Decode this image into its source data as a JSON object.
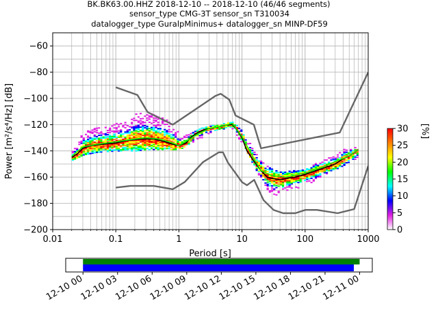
{
  "figure": {
    "title_lines": [
      "BK.BK63.00.HHZ   2018-12-10 -- 2018-12-10  (46/46 segments)",
      "sensor_type CMG-3T sensor_sn T310034",
      "datalogger_type GuralpMinimus+ datalogger_sn MINP-DF59"
    ]
  },
  "chart_data": [
    {
      "type": "heatmap",
      "title": "BK.BK63.00.HHZ   2018-12-10 -- 2018-12-10  (46/46 segments)",
      "xlabel": "Period [s]",
      "ylabel": "Power [m²/s⁴/Hz] [dB]",
      "x_scale": "log",
      "xlim": [
        0.01,
        1000
      ],
      "ylim": [
        -200,
        -50
      ],
      "x_ticks": [
        "0.01",
        "0.1",
        "1",
        "10",
        "100",
        "1000"
      ],
      "y_ticks": [
        "−200",
        "−180",
        "−160",
        "−140",
        "−120",
        "−100",
        "−80",
        "−60"
      ],
      "grid": true,
      "colorbar": {
        "label": "[%]",
        "min": 0,
        "max": 30,
        "ticks": [
          "0",
          "5",
          "10",
          "15",
          "20",
          "25",
          "30"
        ],
        "colors": [
          "#ffffff",
          "#e020e0",
          "#0000ff",
          "#00ffff",
          "#00ff00",
          "#ffff00",
          "#ff8000",
          "#ff0000"
        ]
      },
      "series": [
        {
          "role": "mean",
          "color": "#000000",
          "x": [
            0.02,
            0.025,
            0.03,
            0.04,
            0.06,
            0.1,
            0.15,
            0.25,
            0.4,
            0.6,
            0.8,
            1.0,
            1.3,
            1.6,
            2.0,
            2.5,
            3.0,
            4.0,
            5.0,
            6.0,
            7.0,
            8.0,
            10.0,
            12.0,
            15.0,
            20.0,
            25.0,
            30.0,
            40.0,
            50.0,
            70.0,
            100.0,
            150.0,
            200.0,
            300.0,
            400.0,
            500.0,
            700.0
          ],
          "y": [
            -145,
            -142,
            -138,
            -136,
            -135,
            -134,
            -132,
            -131,
            -131,
            -133,
            -135,
            -136,
            -134,
            -129,
            -126,
            -124,
            -123,
            -122,
            -121,
            -120,
            -120,
            -123,
            -130,
            -140,
            -147,
            -155,
            -160,
            -161,
            -162,
            -161,
            -160,
            -158,
            -155,
            -153,
            -150,
            -146,
            -144,
            -139
          ]
        },
        {
          "role": "mode",
          "color": "#00ff00",
          "x": [
            0.02,
            0.03,
            0.05,
            0.1,
            0.2,
            0.3,
            0.5,
            0.8,
            1.0,
            1.5,
            2.0,
            3.0,
            5.0,
            7.0,
            10.0,
            15.0,
            20.0,
            30.0,
            50.0,
            100.0,
            200.0,
            300.0,
            500.0,
            700.0
          ],
          "y": [
            -144,
            -137,
            -135,
            -133,
            -131,
            -130,
            -131,
            -134,
            -136,
            -131,
            -127,
            -123,
            -121,
            -119,
            -129,
            -145,
            -155,
            -159,
            -160,
            -157,
            -152,
            -148,
            -144,
            -139
          ]
        },
        {
          "role": "noise-model",
          "name": "",
          "color": "#666666",
          "x": [
            0.1,
            0.22,
            0.32,
            0.8,
            3.8,
            4.6,
            6.3,
            7.9,
            15.4,
            20.0,
            354.8,
            10000.0
          ],
          "y": [
            -91.5,
            -97.4,
            -110.5,
            -120.0,
            -98.0,
            -96.5,
            -101.0,
            -113.0,
            -120.0,
            -138.0,
            -126.0,
            -80.1
          ]
        },
        {
          "role": "noise-model",
          "name": "",
          "color": "#666666",
          "x": [
            0.1,
            0.17,
            0.4,
            0.8,
            1.24,
            2.4,
            4.3,
            5.0,
            6.0,
            10.0,
            12.0,
            15.6,
            21.9,
            31.6,
            45.0,
            70.0,
            101.0,
            154.0,
            328.0,
            600.0,
            10000.0
          ],
          "y": [
            -168.0,
            -166.7,
            -166.7,
            -169.2,
            -163.7,
            -148.6,
            -141.1,
            -141.1,
            -149.0,
            -163.8,
            -166.2,
            -162.1,
            -177.5,
            -185.0,
            -187.5,
            -187.5,
            -185.0,
            -185.0,
            -187.5,
            -184.4,
            -151.5
          ]
        }
      ],
      "spread_envelope": {
        "x": [
          0.02,
          0.03,
          0.05,
          0.1,
          0.15,
          0.2,
          0.3,
          0.5,
          0.8,
          1.0,
          1.5,
          2.0,
          3.0,
          5.0,
          7.0,
          10.0,
          15.0,
          20.0,
          25.0,
          30.0,
          40.0,
          60.0,
          100.0,
          150.0,
          200.0,
          300.0,
          400.0,
          500.0,
          700.0
        ],
        "upper": [
          -140,
          -125,
          -122,
          -119,
          -118,
          -112,
          -110,
          -113,
          -120,
          -127,
          -126,
          -123,
          -121,
          -119,
          -118,
          -125,
          -138,
          -148,
          -152,
          -154,
          -155,
          -155,
          -154,
          -149,
          -146,
          -142,
          -138,
          -137,
          -137
        ],
        "lower": [
          -147,
          -143,
          -141,
          -140,
          -140,
          -140,
          -139,
          -139,
          -139,
          -139,
          -134,
          -131,
          -127,
          -124,
          -123,
          -136,
          -151,
          -163,
          -170,
          -174,
          -173,
          -169,
          -167,
          -161,
          -158,
          -154,
          -151,
          -148,
          -145
        ]
      }
    },
    {
      "type": "timeline",
      "tick_labels": [
        "12-10 00",
        "12-10 03",
        "12-10 06",
        "12-10 09",
        "12-10 12",
        "12-10 15",
        "12-10 18",
        "12-10 21",
        "12-11 00"
      ],
      "xlim_hours": [
        -1.5,
        25.1
      ],
      "bars": [
        {
          "role": "data",
          "color": "#008000",
          "start_hour": 0,
          "end_hour": 24.0
        },
        {
          "role": "psd-segments",
          "color": "#0000ff",
          "start_hour": 0,
          "end_hour": 23.5
        }
      ]
    }
  ]
}
